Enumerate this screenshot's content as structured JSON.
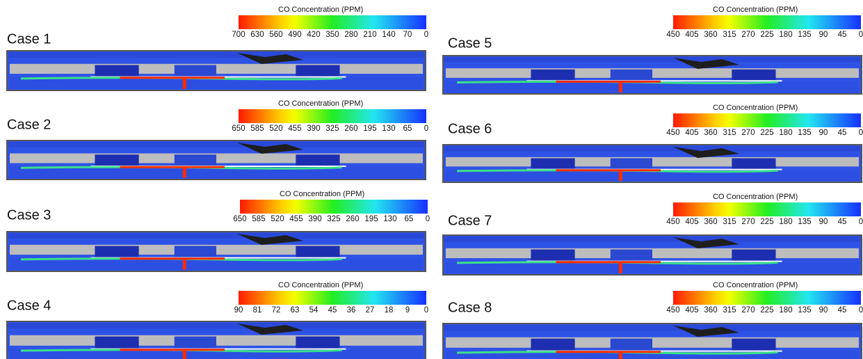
{
  "cases": [
    {
      "label": "Case 1",
      "colorbar_title": "CO Concentration (PPM)",
      "ticks": [
        700,
        630,
        560,
        490,
        420,
        350,
        280,
        210,
        140,
        70,
        0
      ]
    },
    {
      "label": "Case 2",
      "colorbar_title": "CO Concentration (PPM)",
      "ticks": [
        650,
        585,
        520,
        455,
        390,
        325,
        260,
        195,
        130,
        65,
        0
      ]
    },
    {
      "label": "Case 3",
      "colorbar_title": "CO Concentration (PPM)",
      "ticks": [
        650,
        585,
        520,
        455,
        390,
        325,
        260,
        195,
        130,
        65,
        0
      ]
    },
    {
      "label": "Case 4",
      "colorbar_title": "CO Concentration (PPM)",
      "ticks": [
        90,
        81,
        72,
        63,
        54,
        45,
        36,
        27,
        18,
        9,
        0
      ]
    },
    {
      "label": "Case 5",
      "colorbar_title": "CO Concentration (PPM)",
      "ticks": [
        450,
        405,
        360,
        315,
        270,
        225,
        180,
        135,
        90,
        45,
        0
      ]
    },
    {
      "label": "Case 6",
      "colorbar_title": "CO Concentration (PPM)",
      "ticks": [
        450,
        405,
        360,
        315,
        270,
        225,
        180,
        135,
        90,
        45,
        0
      ]
    },
    {
      "label": "Case 7",
      "colorbar_title": "CO Concentration (PPM)",
      "ticks": [
        450,
        405,
        360,
        315,
        270,
        225,
        180,
        135,
        90,
        45,
        0
      ]
    },
    {
      "label": "Case 8",
      "colorbar_title": "CO Concentration (PPM)",
      "ticks": [
        450,
        405,
        360,
        315,
        270,
        225,
        180,
        135,
        90,
        45,
        0
      ]
    }
  ]
}
